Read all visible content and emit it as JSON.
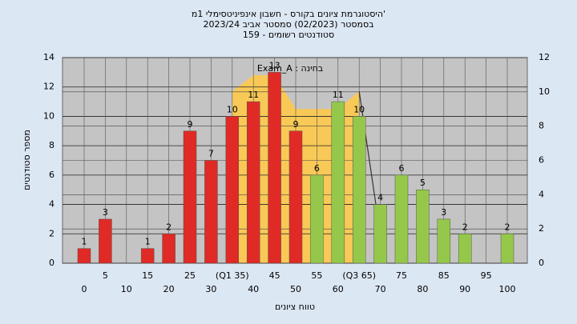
{
  "chart_data": {
    "type": "bar",
    "title": [
      "היסטוגרמת ציונים בקורס - חשבון אינפיניטסימלי 1מ'",
      "בסמסטר (02/2023) סמסטר אביב 2023/24",
      "סטודנטים רשומים - 159"
    ],
    "annotation": "Exam_A : בחינה",
    "xlabel": "טווח ציונים",
    "ylabel": "מספר סטודנטים",
    "categories": [
      "0",
      "5",
      "10",
      "15",
      "20",
      "25",
      "30",
      "(Q1 35)",
      "40",
      "45",
      "50",
      "55",
      "60",
      "(Q3 65)",
      "70",
      "75",
      "80",
      "85",
      "90",
      "95",
      "100"
    ],
    "values": [
      1,
      3,
      null,
      1,
      2,
      9,
      7,
      10,
      11,
      13,
      9,
      6,
      11,
      10,
      4,
      6,
      5,
      3,
      2,
      null,
      2
    ],
    "colors": [
      "#e02a25",
      "#e02a25",
      "#e02a25",
      "#e02a25",
      "#e02a25",
      "#e02a25",
      "#e02a25",
      "#e02a25",
      "#e02a25",
      "#e02a25",
      "#e02a25",
      "#95c84a",
      "#95c84a",
      "#95c84a",
      "#95c84a",
      "#95c84a",
      "#95c84a",
      "#95c84a",
      "#95c84a",
      "#95c84a",
      "#95c84a"
    ],
    "overlay_area": {
      "color": "#f8c956",
      "x": [
        35,
        40,
        45,
        50,
        60,
        65
      ],
      "values": [
        11.7,
        12.8,
        12.8,
        10.5,
        10.5,
        11.7
      ]
    },
    "overlay_line": {
      "color": "#333333",
      "x": [
        65,
        69
      ],
      "values": [
        11.7,
        3.9
      ]
    },
    "xlim": [
      0,
      100
    ],
    "ylim": [
      0,
      14
    ],
    "yticks": [
      0,
      2,
      4,
      6,
      8,
      10,
      12,
      14
    ],
    "y2lim": [
      0,
      12
    ],
    "y2ticks": [
      0,
      2,
      4,
      6,
      8,
      10,
      12
    ],
    "grid": true
  }
}
